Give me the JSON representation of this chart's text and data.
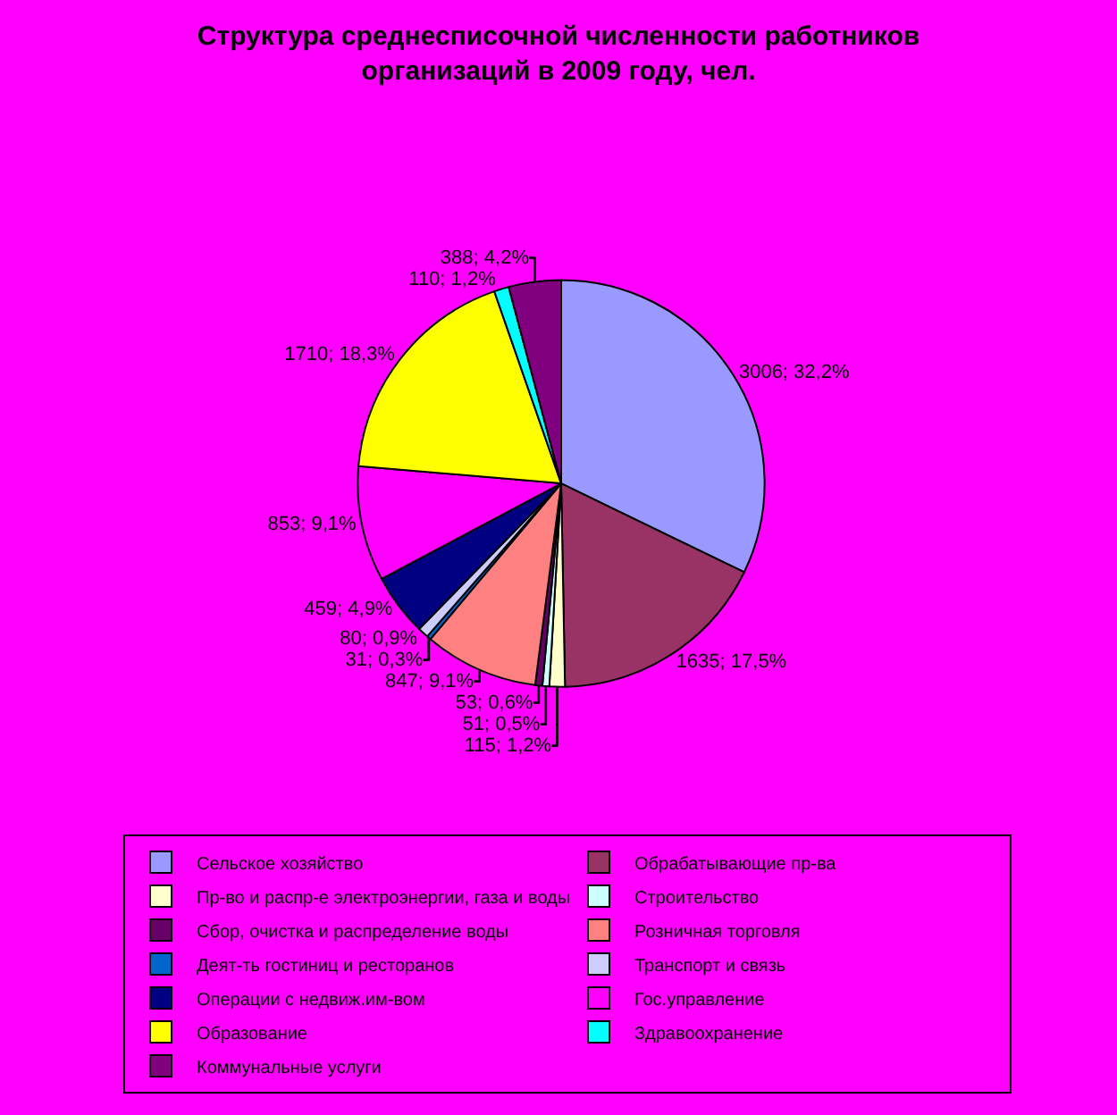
{
  "chart_data": {
    "type": "pie",
    "title": "Структура среднесписочной численности работников\nорганизаций в 2009 году, чел.",
    "categories": [
      "Сельское хозяйство",
      "Обрабатывающие пр-ва",
      "Пр-во и распр-е электроэнергии, газа и воды",
      "Строительство",
      "Сбор, очистка и распределение воды",
      "Розничная торговля",
      "Деят-ть гостиниц и ресторанов",
      "Транспорт и связь",
      "Операции с недвиж.им-вом",
      "Гос.управление",
      "Образование",
      "Здравоохранение",
      "Коммунальные услуги"
    ],
    "values": [
      3006,
      1635,
      115,
      51,
      53,
      847,
      31,
      80,
      459,
      853,
      1710,
      110,
      388
    ],
    "value_labels": [
      "3006; 32,2%",
      "1635; 17,5%",
      "115; 1,2%",
      "51; 0,5%",
      "53; 0,6%",
      "847; 9,1%",
      "31; 0,3%",
      "80; 0,9%",
      "459; 4,9%",
      "853; 9,1%",
      "1710; 18,3%",
      "110; 1,2%",
      "388; 4,2%"
    ],
    "colors": [
      "#9999ff",
      "#993366",
      "#ffffcc",
      "#ccffff",
      "#660066",
      "#ff8080",
      "#0066cc",
      "#ccccff",
      "#000080",
      "#ff00ff",
      "#ffff00",
      "#00ffff",
      "#800080"
    ],
    "legend": "bottom"
  }
}
